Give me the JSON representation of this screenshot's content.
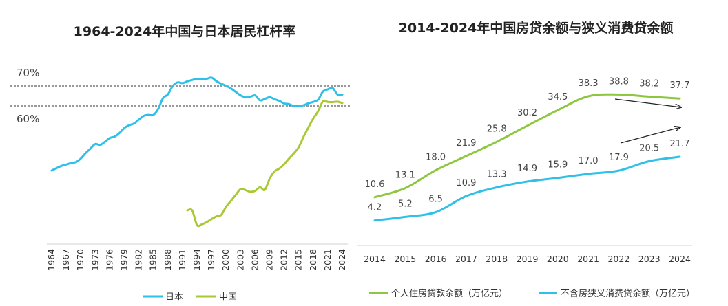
{
  "charts": [
    {
      "title": "1964-2024年中国与日本居民杠杆率",
      "reference_labels": [
        "70%",
        "60%"
      ],
      "legend": [
        {
          "name": "日本",
          "color": "#2ec0e8"
        },
        {
          "name": "中国",
          "color": "#a8c935"
        }
      ]
    },
    {
      "title": "2014-2024年中国房贷余额与狭义消费贷余额",
      "legend": [
        {
          "name": "个人住房贷款余额（万亿元）",
          "color": "#8dc63f"
        },
        {
          "name": "不含房狭义消费贷余额（万亿元）",
          "color": "#2ec0e8"
        }
      ]
    }
  ],
  "chart_data": [
    {
      "type": "line",
      "title": "1964-2024年中国与日本居民杠杆率",
      "x_tick_labels": [
        "1964",
        "1967",
        "1970",
        "1973",
        "1976",
        "1979",
        "1982",
        "1985",
        "1988",
        "1991",
        "1994",
        "1997",
        "2000",
        "2003",
        "2006",
        "2009",
        "2012",
        "2015",
        "2018",
        "2021",
        "2024"
      ],
      "y_unit": "%",
      "reference_lines": [
        70,
        60
      ],
      "series": [
        {
          "name": "日本",
          "color": "#2ec0e8",
          "x": [
            1964,
            1965,
            1966,
            1967,
            1968,
            1969,
            1970,
            1971,
            1972,
            1973,
            1974,
            1975,
            1976,
            1977,
            1978,
            1979,
            1980,
            1981,
            1982,
            1983,
            1984,
            1985,
            1986,
            1987,
            1988,
            1989,
            1990,
            1991,
            1992,
            1993,
            1994,
            1995,
            1996,
            1997,
            1998,
            1999,
            2000,
            2001,
            2002,
            2003,
            2004,
            2005,
            2006,
            2007,
            2008,
            2009,
            2010,
            2011,
            2012,
            2013,
            2014,
            2015,
            2016,
            2017,
            2018,
            2019,
            2020,
            2021,
            2022,
            2023,
            2024
          ],
          "values": [
            27.6,
            28.8,
            29.9,
            30.6,
            31.3,
            31.8,
            33.6,
            36.3,
            38.6,
            40.9,
            40.4,
            42,
            43.9,
            44.6,
            46.4,
            48.9,
            50.3,
            51.2,
            53.1,
            55,
            55.5,
            55.5,
            58.5,
            64,
            65.8,
            70,
            71.8,
            71.4,
            72.3,
            73,
            73.6,
            73.3,
            73.6,
            74.2,
            72.4,
            71.1,
            70.1,
            68.8,
            67,
            65.3,
            64.3,
            64.6,
            65.3,
            62.8,
            63.5,
            64.4,
            63.4,
            62.5,
            61.2,
            60.9,
            59.9,
            60,
            60.3,
            61.3,
            62,
            63.1,
            67.2,
            68.3,
            69,
            65.8,
            65.7
          ]
        },
        {
          "name": "中国",
          "color": "#a8c935",
          "x": [
            1992,
            1993,
            1994,
            1995,
            1996,
            1997,
            1998,
            1999,
            2000,
            2001,
            2002,
            2003,
            2004,
            2005,
            2006,
            2007,
            2008,
            2009,
            2010,
            2011,
            2012,
            2013,
            2014,
            2015,
            2016,
            2017,
            2018,
            2019,
            2020,
            2021,
            2022,
            2023,
            2024
          ],
          "values": [
            7.6,
            7.6,
            0.2,
            0.6,
            1.7,
            3.2,
            4.6,
            5.3,
            9.4,
            12.3,
            15.4,
            18.3,
            17.8,
            16.9,
            17.4,
            19.2,
            17.9,
            23.5,
            27.1,
            28.6,
            30.8,
            33.6,
            36.2,
            39.3,
            44.5,
            49.2,
            53.7,
            57.3,
            62.3,
            62,
            61.9,
            62.1,
            61.4
          ]
        }
      ]
    },
    {
      "type": "line",
      "title": "2014-2024年中国房贷余额与狭义消费贷余额",
      "categories": [
        "2014",
        "2015",
        "2016",
        "2017",
        "2018",
        "2019",
        "2020",
        "2021",
        "2022",
        "2023",
        "2024"
      ],
      "series": [
        {
          "name": "个人住房贷款余额（万亿元）",
          "color": "#8dc63f",
          "values": [
            10.6,
            13.1,
            18.0,
            21.9,
            25.8,
            30.2,
            34.5,
            38.3,
            38.8,
            38.2,
            37.7
          ]
        },
        {
          "name": "不含房狭义消费贷余额（万亿元）",
          "color": "#2ec0e8",
          "values": [
            4.2,
            5.2,
            6.5,
            10.9,
            13.3,
            14.9,
            15.9,
            17.0,
            17.9,
            20.5,
            21.7
          ]
        }
      ]
    }
  ]
}
